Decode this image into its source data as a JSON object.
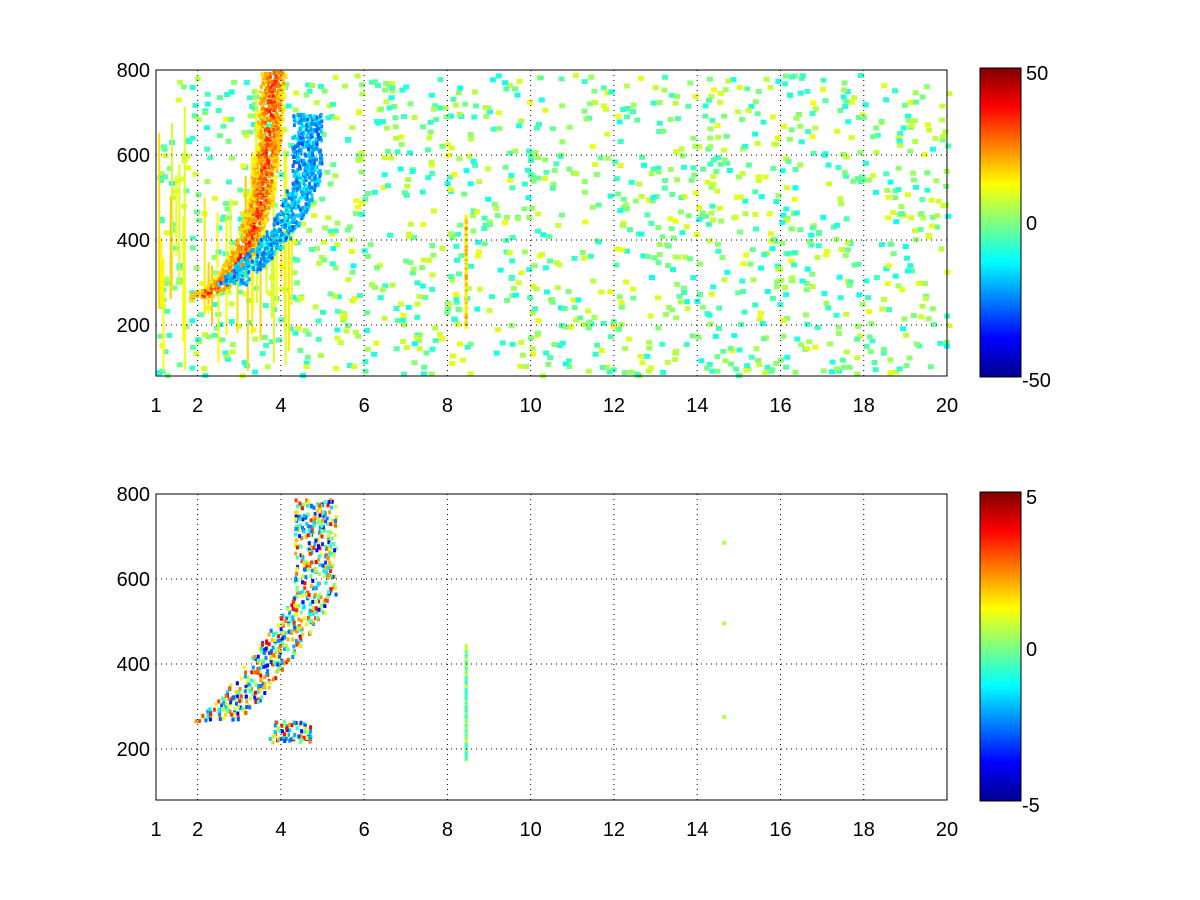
{
  "chart_data": [
    {
      "type": "heatmap",
      "title": "",
      "xlabel": "",
      "ylabel": "",
      "xlim": [
        1,
        20
      ],
      "ylim": [
        80,
        800
      ],
      "xticks": [
        1,
        2,
        4,
        6,
        8,
        10,
        12,
        14,
        16,
        18,
        20
      ],
      "xtick_labels": [
        "1",
        "2",
        "4",
        "6",
        "8",
        "10",
        "12",
        "14",
        "16",
        "18",
        "20"
      ],
      "yticks": [
        200,
        400,
        600,
        800
      ],
      "ytick_labels": [
        "200",
        "400",
        "600",
        "800"
      ],
      "grid": true,
      "colormap": "jet",
      "clim": [
        -50,
        50
      ],
      "colorbar_ticks": [
        50,
        0,
        -50
      ],
      "colorbar_labels": [
        "50",
        "0",
        "-50"
      ],
      "features": [
        {
          "desc": "positive ridge",
          "x": [
            2.0,
            2.4,
            2.8,
            3.2,
            3.5,
            3.7,
            3.8
          ],
          "y": [
            270,
            290,
            330,
            400,
            500,
            650,
            800
          ],
          "value": 40
        },
        {
          "desc": "negative band",
          "x": [
            2.8,
            3.3,
            3.8,
            4.2,
            4.6
          ],
          "y": [
            300,
            350,
            400,
            460,
            550
          ],
          "value": -30
        },
        {
          "desc": "vertical line",
          "x": 8.45,
          "y_range": [
            200,
            460
          ],
          "value": 25
        }
      ]
    },
    {
      "type": "heatmap",
      "title": "",
      "xlabel": "",
      "ylabel": "",
      "xlim": [
        1,
        20
      ],
      "ylim": [
        80,
        800
      ],
      "xticks": [
        1,
        2,
        4,
        6,
        8,
        10,
        12,
        14,
        16,
        18,
        20
      ],
      "xtick_labels": [
        "1",
        "2",
        "4",
        "6",
        "8",
        "10",
        "12",
        "14",
        "16",
        "18",
        "20"
      ],
      "yticks": [
        200,
        400,
        600,
        800
      ],
      "ytick_labels": [
        "200",
        "400",
        "600",
        "800"
      ],
      "grid": true,
      "colormap": "jet",
      "clim": [
        -5,
        5
      ],
      "colorbar_ticks": [
        5,
        0,
        -5
      ],
      "colorbar_labels": [
        "5",
        "0",
        "-5"
      ],
      "features": [
        {
          "desc": "scatter cluster",
          "x": [
            2.2,
            2.8,
            3.4,
            4.0,
            4.6
          ],
          "y": [
            270,
            320,
            400,
            480,
            560
          ],
          "value": 0
        },
        {
          "desc": "vertical line",
          "x": 8.45,
          "y_range": [
            180,
            450
          ],
          "value": 1
        },
        {
          "desc": "small patches",
          "x": 14.6,
          "y": [
            280,
            500,
            690
          ],
          "value": 0
        }
      ]
    }
  ]
}
